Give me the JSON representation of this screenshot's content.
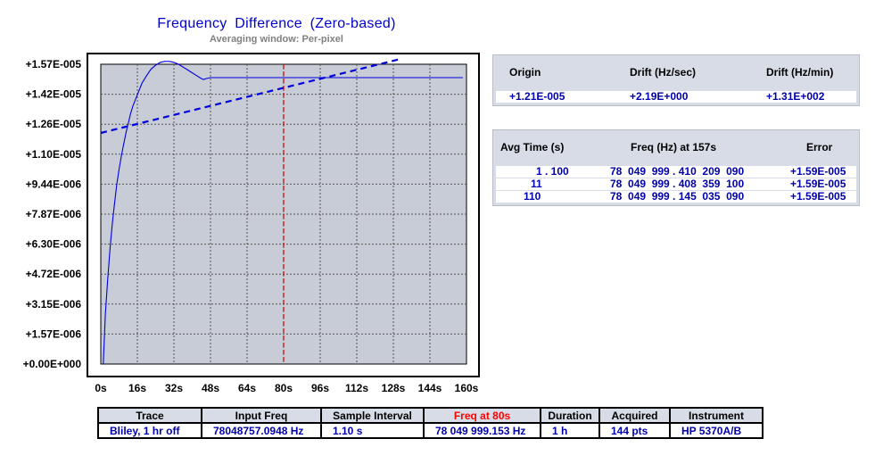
{
  "chart_data": {
    "type": "line",
    "title": "Frequency Difference (Zero-based)",
    "subtitle": "Averaging window: Per-pixel",
    "x_unit": "s",
    "xlim": [
      0,
      160
    ],
    "ylim": [
      0,
      1.57e-05
    ],
    "x_ticks": [
      "0s",
      "16s",
      "32s",
      "48s",
      "64s",
      "80s",
      "96s",
      "112s",
      "128s",
      "144s",
      "160s"
    ],
    "y_ticks": [
      "+0.00E+000",
      "+1.57E-006",
      "+3.15E-006",
      "+4.72E-006",
      "+6.30E-006",
      "+7.87E-006",
      "+9.44E-006",
      "+1.10E-005",
      "+1.26E-005",
      "+1.42E-005",
      "+1.57E-005"
    ],
    "grid": true,
    "marker_x": 80,
    "series": [
      {
        "style": "solid",
        "color": "#0000dd",
        "x": [
          1.1,
          2,
          3,
          4,
          5,
          6,
          7,
          8,
          9,
          10,
          11,
          12,
          13,
          14,
          15,
          16,
          18,
          20,
          22,
          24,
          26,
          28,
          30,
          32,
          34,
          36,
          38,
          40,
          42,
          44,
          45,
          46,
          48,
          50,
          56,
          64,
          80,
          96,
          112,
          128,
          144,
          158.4
        ],
        "y": [
          0.0,
          2.6e-06,
          4.4e-06,
          6e-06,
          7.3e-06,
          8.4e-06,
          9.4e-06,
          1.02e-05,
          1.09e-05,
          1.15e-05,
          1.21e-05,
          1.26e-05,
          1.31e-05,
          1.35e-05,
          1.38e-05,
          1.41e-05,
          1.47e-05,
          1.51e-05,
          1.545e-05,
          1.565e-05,
          1.58e-05,
          1.585e-05,
          1.585e-05,
          1.58e-05,
          1.57e-05,
          1.555e-05,
          1.54e-05,
          1.525e-05,
          1.51e-05,
          1.495e-05,
          1.49e-05,
          1.495e-05,
          1.5e-05,
          1.5e-05,
          1.5e-05,
          1.5e-05,
          1.5e-05,
          1.5e-05,
          1.5e-05,
          1.5e-05,
          1.5e-05,
          1.5e-05
        ]
      },
      {
        "style": "dashed",
        "color": "#0000dd",
        "x": [
          0,
          131
        ],
        "y": [
          1.21e-05,
          1.597e-05
        ]
      }
    ]
  },
  "drift": {
    "headers": [
      "Origin",
      "Drift (Hz/sec)",
      "Drift (Hz/min)"
    ],
    "values": [
      "+1.21E-005",
      "+2.19E+000",
      "+1.31E+002"
    ]
  },
  "avg": {
    "headers": [
      "Avg Time (s)",
      "Freq (Hz) at 157s",
      "Error"
    ],
    "rows": [
      [
        "1 . 100",
        "78  049  999 . 410  209  090",
        "+1.59E-005"
      ],
      [
        "11",
        "78  049  999 . 408  359  100",
        "+1.59E-005"
      ],
      [
        "110",
        "78  049  999 . 145  035  090",
        "+1.59E-005"
      ]
    ]
  },
  "info": {
    "headers": [
      "Trace",
      "Input Freq",
      "Sample Interval",
      "Freq at 80s",
      "Duration",
      "Acquired",
      "Instrument"
    ],
    "values": [
      "Bliley, 1 hr off",
      "78048757.0948 Hz",
      "1.10 s",
      "78 049 999.153 Hz",
      "1 h",
      "144 pts",
      "HP 5370A/B"
    ],
    "highlight_color": "#ff0000"
  }
}
